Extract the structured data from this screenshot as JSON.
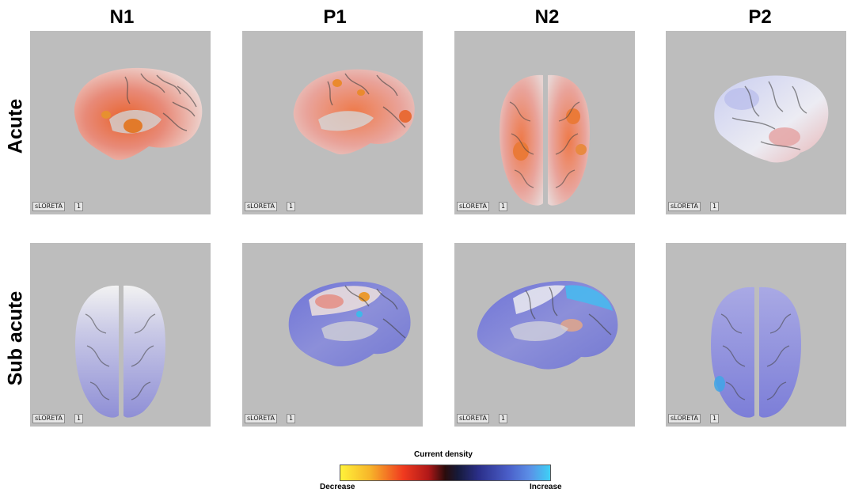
{
  "columns": [
    "N1",
    "P1",
    "N2",
    "P2"
  ],
  "rows": [
    "Acute",
    "Sub acute"
  ],
  "panel_tag": "sLORETA",
  "panel_index": "1",
  "legend": {
    "title": "Current density",
    "left_label": "Decrease",
    "right_label": "Increase"
  },
  "panels": [
    {
      "row": "Acute",
      "col": "N1",
      "view": "medial-sagittal",
      "tint": "red"
    },
    {
      "row": "Acute",
      "col": "P1",
      "view": "medial-sagittal",
      "tint": "red"
    },
    {
      "row": "Acute",
      "col": "N2",
      "view": "top",
      "tint": "red"
    },
    {
      "row": "Acute",
      "col": "P2",
      "view": "lateral-sagittal",
      "tint": "blue-red"
    },
    {
      "row": "Sub acute",
      "col": "N1",
      "view": "top",
      "tint": "blue"
    },
    {
      "row": "Sub acute",
      "col": "P1",
      "view": "medial-sagittal",
      "tint": "blue-red"
    },
    {
      "row": "Sub acute",
      "col": "N2",
      "view": "medial-sagittal",
      "tint": "blue"
    },
    {
      "row": "Sub acute",
      "col": "P2",
      "view": "top",
      "tint": "blue"
    }
  ]
}
